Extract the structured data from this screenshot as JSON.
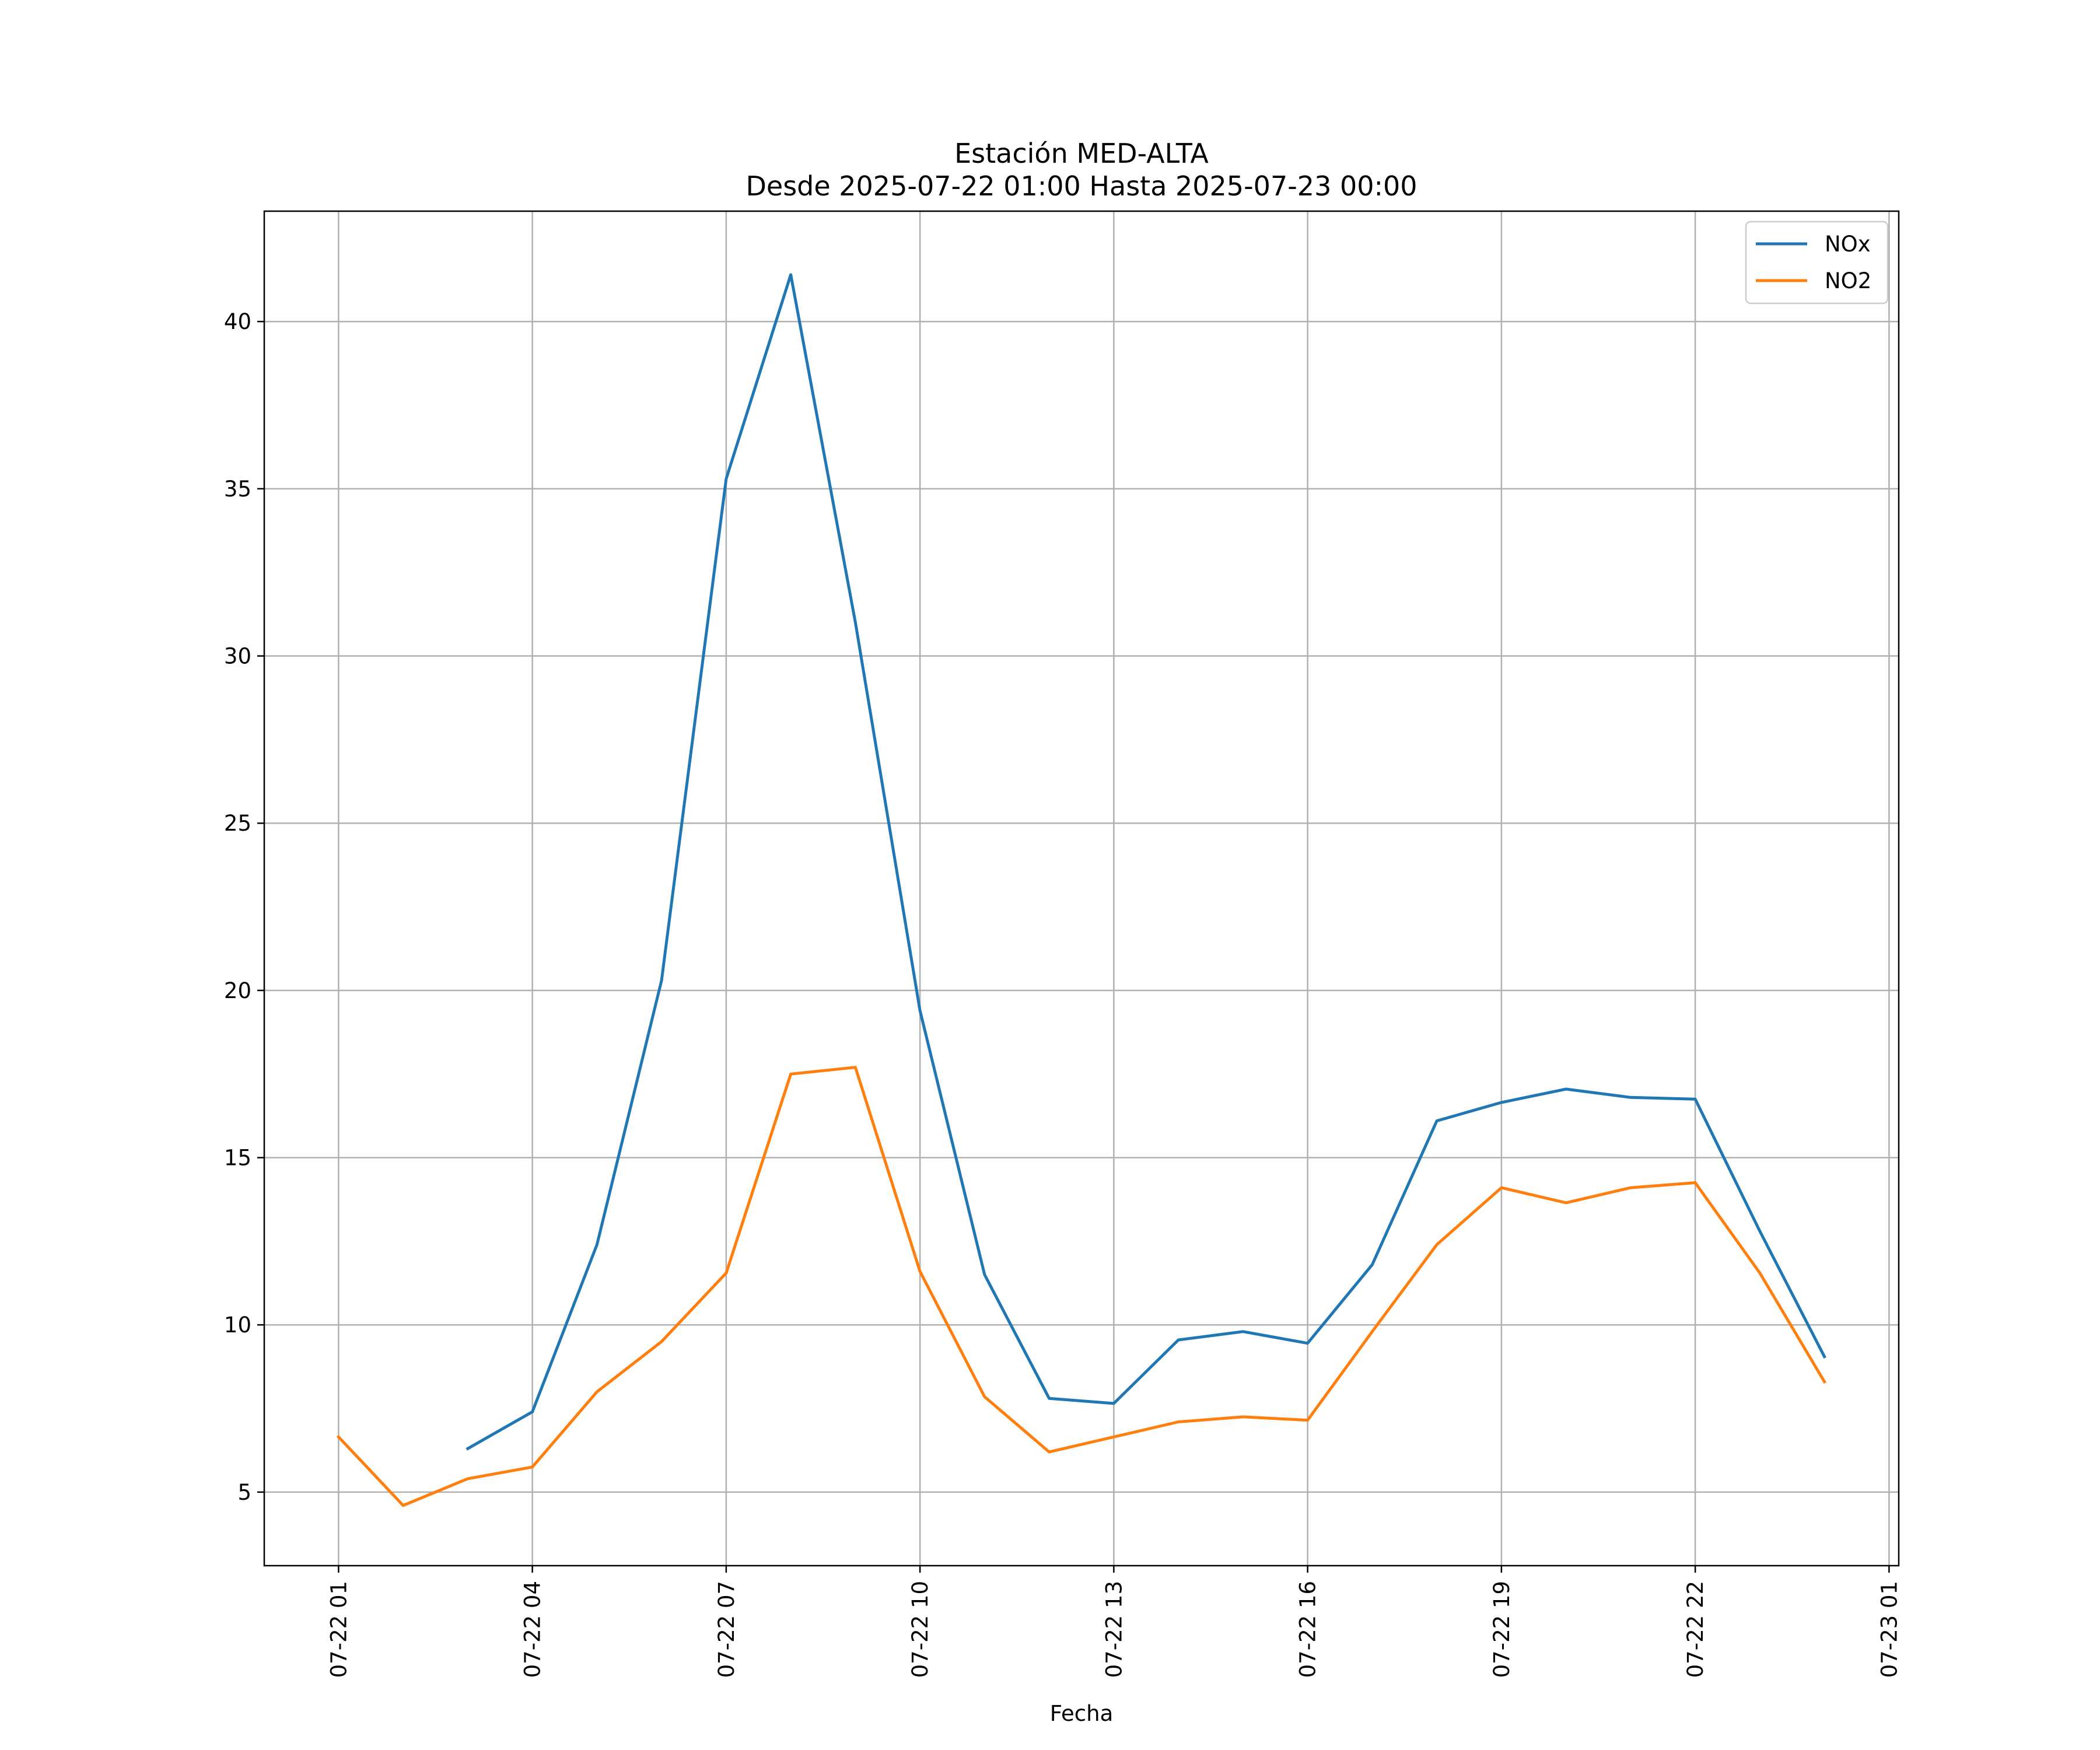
{
  "chart_data": {
    "type": "line",
    "title_line1": "Estación MED-ALTA",
    "title_line2": "Desde 2025-07-22 01:00 Hasta 2025-07-23 00:00",
    "xlabel": "Fecha",
    "ylabel": "",
    "x": [
      "2025-07-22 01:00",
      "2025-07-22 02:00",
      "2025-07-22 03:00",
      "2025-07-22 04:00",
      "2025-07-22 05:00",
      "2025-07-22 06:00",
      "2025-07-22 07:00",
      "2025-07-22 08:00",
      "2025-07-22 09:00",
      "2025-07-22 10:00",
      "2025-07-22 11:00",
      "2025-07-22 12:00",
      "2025-07-22 13:00",
      "2025-07-22 14:00",
      "2025-07-22 15:00",
      "2025-07-22 16:00",
      "2025-07-22 17:00",
      "2025-07-22 18:00",
      "2025-07-22 19:00",
      "2025-07-22 20:00",
      "2025-07-22 21:00",
      "2025-07-22 22:00",
      "2025-07-22 23:00",
      "2025-07-23 00:00"
    ],
    "series": [
      {
        "name": "NOx",
        "color": "#1f77b4",
        "values": [
          null,
          null,
          6.3,
          7.4,
          12.4,
          20.3,
          35.3,
          41.4,
          31.0,
          19.4,
          11.5,
          7.8,
          7.65,
          9.55,
          9.8,
          9.45,
          11.8,
          16.1,
          16.65,
          17.05,
          16.8,
          16.75,
          12.8,
          9.05
        ]
      },
      {
        "name": "NO2",
        "color": "#ff7f0e",
        "values": [
          6.65,
          4.6,
          5.4,
          5.75,
          8.0,
          9.5,
          11.55,
          17.5,
          17.7,
          11.6,
          7.85,
          6.2,
          6.65,
          7.1,
          7.25,
          7.15,
          9.8,
          12.4,
          14.1,
          13.65,
          14.1,
          14.25,
          11.55,
          8.3
        ]
      }
    ],
    "x_tick_labels": [
      "07-22 01",
      "07-22 04",
      "07-22 07",
      "07-22 10",
      "07-22 13",
      "07-22 16",
      "07-22 19",
      "07-22 22",
      "07-23 01"
    ],
    "x_tick_dates": [
      "2025-07-22 01:00",
      "2025-07-22 04:00",
      "2025-07-22 07:00",
      "2025-07-22 10:00",
      "2025-07-22 13:00",
      "2025-07-22 16:00",
      "2025-07-22 19:00",
      "2025-07-22 22:00",
      "2025-07-23 01:00"
    ],
    "x_range": [
      "2025-07-21 23:51",
      "2025-07-23 01:09"
    ],
    "y_ticks": [
      5,
      10,
      15,
      20,
      25,
      30,
      35,
      40
    ],
    "ylim": [
      2.8,
      43.3
    ],
    "grid": true,
    "legend_position": "top-right"
  }
}
